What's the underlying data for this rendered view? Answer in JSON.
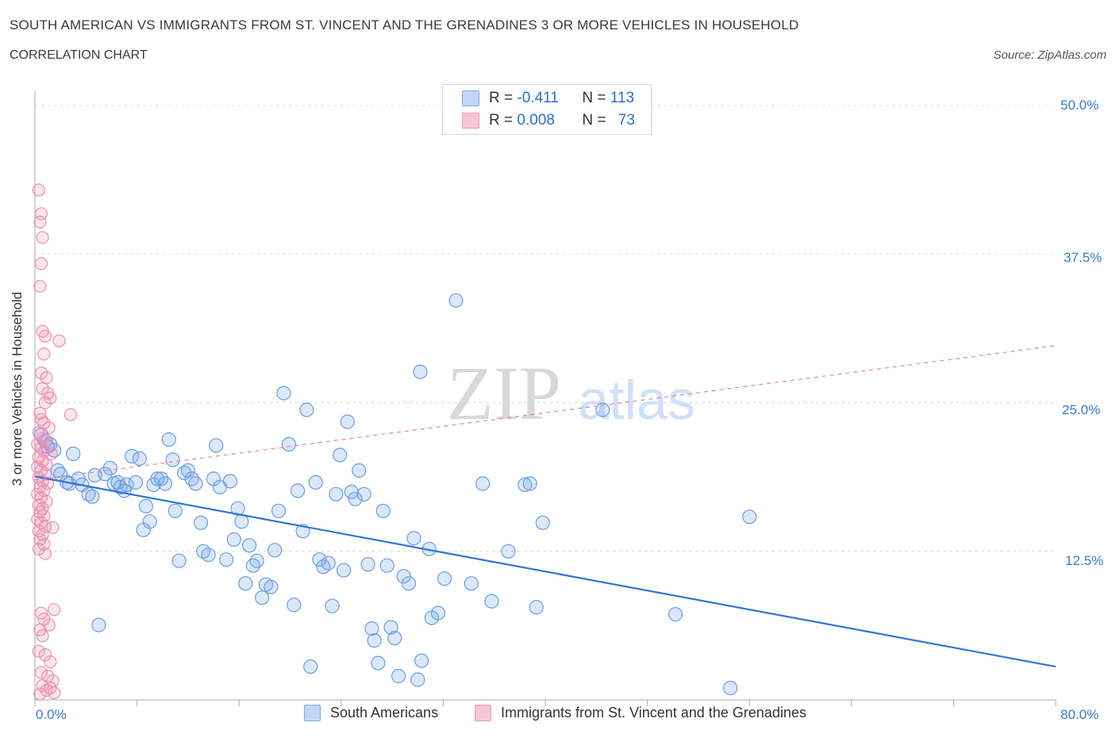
{
  "title": "SOUTH AMERICAN VS IMMIGRANTS FROM ST. VINCENT AND THE GRENADINES 3 OR MORE VEHICLES IN HOUSEHOLD",
  "subtitle": "CORRELATION CHART",
  "source": "Source: ZipAtlas.com",
  "watermark": {
    "zip": "ZIP",
    "atlas": "atlas"
  },
  "legend": {
    "r_label": "R =",
    "n_label": "N =",
    "series1": {
      "r": "-0.411",
      "n": "113",
      "color": "#6fa2e8"
    },
    "series2": {
      "r": "0.008",
      "n": "73",
      "color": "#ef8fae"
    }
  },
  "bottom_legend": {
    "series1": "South Americans",
    "series2": "Immigrants from St. Vincent and the Grenadines"
  },
  "chart_data": {
    "type": "scatter",
    "ylabel": "3 or more Vehicles in Household",
    "x_tick_labels": {
      "left": "0.0%",
      "right": "80.0%"
    },
    "y_tick_labels": [
      "12.5%",
      "25.0%",
      "37.5%",
      "50.0%"
    ],
    "xlim": [
      0,
      80
    ],
    "ylim": [
      0,
      50
    ],
    "grid": true,
    "series": [
      {
        "name": "South Americans",
        "color": "#6fa2e8",
        "trend": {
          "x": [
            0,
            80
          ],
          "y": [
            18.8,
            2.8
          ],
          "style": "solid"
        },
        "points": [
          [
            0.5,
            22.3
          ],
          [
            0.8,
            21.8
          ],
          [
            1.0,
            21.3
          ],
          [
            1.2,
            21.5
          ],
          [
            1.5,
            21.0
          ],
          [
            1.8,
            19.3
          ],
          [
            2.0,
            19.0
          ],
          [
            2.5,
            18.3
          ],
          [
            2.7,
            18.2
          ],
          [
            3.0,
            20.7
          ],
          [
            3.4,
            18.6
          ],
          [
            3.7,
            18.1
          ],
          [
            4.2,
            17.3
          ],
          [
            4.5,
            17.1
          ],
          [
            4.7,
            18.9
          ],
          [
            5.0,
            6.3
          ],
          [
            5.5,
            19.0
          ],
          [
            5.9,
            19.5
          ],
          [
            6.2,
            18.2
          ],
          [
            6.5,
            18.3
          ],
          [
            6.7,
            17.9
          ],
          [
            7.0,
            17.6
          ],
          [
            7.2,
            18.1
          ],
          [
            7.6,
            20.5
          ],
          [
            7.9,
            18.3
          ],
          [
            8.2,
            20.3
          ],
          [
            8.5,
            14.3
          ],
          [
            8.7,
            16.3
          ],
          [
            9.0,
            15.0
          ],
          [
            9.3,
            18.1
          ],
          [
            9.6,
            18.6
          ],
          [
            9.9,
            18.6
          ],
          [
            10.2,
            18.2
          ],
          [
            10.5,
            21.9
          ],
          [
            10.8,
            20.2
          ],
          [
            11.0,
            15.9
          ],
          [
            11.3,
            11.7
          ],
          [
            11.7,
            19.1
          ],
          [
            12.0,
            19.3
          ],
          [
            12.3,
            18.6
          ],
          [
            12.6,
            18.2
          ],
          [
            13.0,
            14.9
          ],
          [
            13.2,
            12.5
          ],
          [
            13.6,
            12.2
          ],
          [
            14.0,
            18.6
          ],
          [
            14.2,
            21.4
          ],
          [
            14.5,
            17.9
          ],
          [
            15.0,
            11.8
          ],
          [
            15.3,
            18.4
          ],
          [
            15.6,
            13.5
          ],
          [
            15.9,
            16.1
          ],
          [
            16.2,
            15.0
          ],
          [
            16.5,
            9.8
          ],
          [
            16.8,
            13.0
          ],
          [
            17.1,
            11.3
          ],
          [
            17.4,
            11.7
          ],
          [
            17.8,
            8.6
          ],
          [
            18.1,
            9.7
          ],
          [
            18.5,
            9.5
          ],
          [
            18.8,
            12.6
          ],
          [
            19.1,
            15.9
          ],
          [
            19.5,
            25.8
          ],
          [
            19.9,
            21.5
          ],
          [
            20.3,
            8.0
          ],
          [
            20.6,
            17.6
          ],
          [
            21.0,
            14.2
          ],
          [
            21.3,
            24.4
          ],
          [
            21.6,
            2.8
          ],
          [
            22.0,
            18.3
          ],
          [
            22.3,
            11.8
          ],
          [
            22.6,
            11.2
          ],
          [
            23.0,
            11.5
          ],
          [
            23.3,
            7.9
          ],
          [
            23.6,
            17.3
          ],
          [
            23.9,
            20.6
          ],
          [
            24.2,
            10.9
          ],
          [
            24.5,
            23.4
          ],
          [
            24.8,
            17.5
          ],
          [
            25.1,
            16.9
          ],
          [
            25.4,
            19.3
          ],
          [
            25.8,
            17.3
          ],
          [
            26.1,
            11.4
          ],
          [
            26.4,
            6.0
          ],
          [
            26.6,
            5.0
          ],
          [
            26.9,
            3.1
          ],
          [
            27.3,
            15.9
          ],
          [
            27.6,
            11.3
          ],
          [
            27.9,
            6.1
          ],
          [
            28.2,
            5.2
          ],
          [
            28.5,
            2.0
          ],
          [
            28.9,
            10.4
          ],
          [
            29.3,
            9.8
          ],
          [
            29.7,
            13.6
          ],
          [
            30.0,
            1.7
          ],
          [
            30.3,
            3.3
          ],
          [
            30.9,
            12.7
          ],
          [
            31.1,
            6.9
          ],
          [
            31.6,
            7.3
          ],
          [
            32.1,
            10.2
          ],
          [
            33.0,
            33.6
          ],
          [
            34.2,
            9.8
          ],
          [
            35.1,
            18.2
          ],
          [
            35.8,
            8.3
          ],
          [
            37.1,
            12.5
          ],
          [
            38.4,
            18.1
          ],
          [
            38.8,
            18.2
          ],
          [
            39.3,
            7.8
          ],
          [
            39.8,
            14.9
          ],
          [
            44.5,
            24.4
          ],
          [
            50.2,
            7.2
          ],
          [
            30.2,
            27.6
          ],
          [
            54.5,
            1.0
          ],
          [
            56.0,
            15.4
          ]
        ]
      },
      {
        "name": "Immigrants from St. Vincent and the Grenadines",
        "color": "#ef8fae",
        "trend": {
          "x": [
            0,
            80
          ],
          "y": [
            18.5,
            29.8
          ],
          "style": "dashed"
        },
        "points": [
          [
            0.3,
            42.9
          ],
          [
            0.4,
            40.2
          ],
          [
            0.5,
            40.9
          ],
          [
            0.6,
            38.9
          ],
          [
            0.5,
            36.7
          ],
          [
            0.4,
            34.8
          ],
          [
            0.6,
            31.0
          ],
          [
            0.8,
            30.6
          ],
          [
            0.7,
            29.1
          ],
          [
            0.5,
            27.5
          ],
          [
            0.9,
            27.1
          ],
          [
            0.6,
            26.2
          ],
          [
            1.0,
            25.8
          ],
          [
            1.2,
            25.4
          ],
          [
            0.8,
            25.0
          ],
          [
            0.4,
            24.1
          ],
          [
            0.5,
            23.6
          ],
          [
            0.7,
            23.3
          ],
          [
            1.1,
            22.9
          ],
          [
            0.3,
            22.5
          ],
          [
            0.6,
            22.0
          ],
          [
            0.9,
            21.8
          ],
          [
            0.2,
            21.5
          ],
          [
            0.5,
            21.2
          ],
          [
            0.7,
            20.9
          ],
          [
            1.3,
            20.7
          ],
          [
            0.3,
            20.4
          ],
          [
            0.6,
            20.1
          ],
          [
            0.9,
            19.8
          ],
          [
            0.2,
            19.6
          ],
          [
            0.5,
            19.3
          ],
          [
            0.8,
            19.0
          ],
          [
            0.3,
            18.7
          ],
          [
            0.6,
            18.4
          ],
          [
            1.0,
            18.2
          ],
          [
            0.4,
            17.9
          ],
          [
            0.7,
            17.6
          ],
          [
            0.2,
            17.3
          ],
          [
            0.5,
            17.0
          ],
          [
            0.9,
            16.7
          ],
          [
            0.3,
            16.4
          ],
          [
            0.6,
            16.1
          ],
          [
            0.4,
            15.8
          ],
          [
            0.7,
            15.5
          ],
          [
            0.2,
            15.2
          ],
          [
            0.5,
            14.9
          ],
          [
            0.8,
            14.6
          ],
          [
            1.4,
            14.5
          ],
          [
            0.3,
            14.2
          ],
          [
            0.6,
            13.9
          ],
          [
            0.4,
            13.5
          ],
          [
            0.7,
            13.1
          ],
          [
            0.3,
            12.7
          ],
          [
            0.8,
            12.3
          ],
          [
            0.5,
            7.3
          ],
          [
            0.7,
            6.8
          ],
          [
            1.1,
            6.3
          ],
          [
            0.4,
            5.9
          ],
          [
            0.6,
            5.4
          ],
          [
            0.3,
            4.1
          ],
          [
            0.8,
            3.8
          ],
          [
            1.2,
            3.2
          ],
          [
            0.5,
            2.3
          ],
          [
            1.0,
            2.0
          ],
          [
            1.4,
            1.6
          ],
          [
            0.6,
            1.2
          ],
          [
            1.2,
            1.0
          ],
          [
            0.9,
            0.8
          ],
          [
            1.5,
            0.6
          ],
          [
            0.4,
            0.5
          ],
          [
            1.9,
            30.2
          ],
          [
            2.8,
            24.0
          ],
          [
            1.5,
            7.6
          ]
        ]
      }
    ]
  }
}
